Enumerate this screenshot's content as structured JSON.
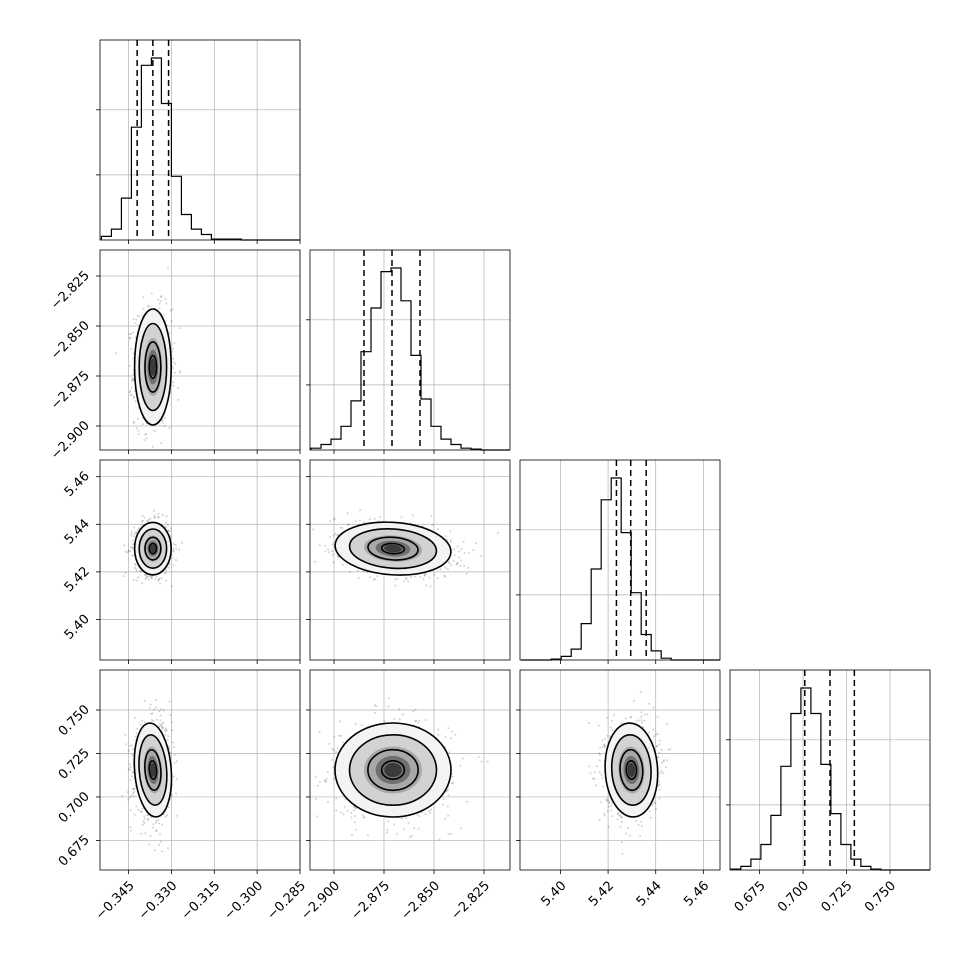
{
  "chart_data": {
    "type": "corner",
    "grid": true,
    "parameters": [
      {
        "index": 0,
        "range": [
          -0.355,
          -0.285
        ],
        "ticks": [
          -0.345,
          -0.33,
          -0.315,
          -0.3,
          -0.285
        ],
        "tick_labels": [
          "−0.345",
          "−0.330",
          "−0.315",
          "−0.300",
          "−0.285"
        ],
        "quantiles": [
          -0.342,
          -0.3365,
          -0.331
        ],
        "hist_start": -0.3545,
        "hist_step": 0.0035,
        "hist_counts": [
          0.02,
          0.06,
          0.23,
          0.62,
          0.96,
          1.0,
          0.75,
          0.35,
          0.14,
          0.06,
          0.03,
          0.005,
          0.005,
          0.005,
          0,
          0,
          0,
          0,
          0,
          0
        ]
      },
      {
        "index": 1,
        "range": [
          -2.912,
          -2.812
        ],
        "ticks": [
          -2.9,
          -2.875,
          -2.85,
          -2.825
        ],
        "tick_labels": [
          "−2.900",
          "−2.875",
          "−2.850",
          "−2.825"
        ],
        "quantiles": [
          -2.885,
          -2.871,
          -2.857
        ],
        "hist_start": -2.9115,
        "hist_step": 0.005,
        "hist_counts": [
          0.01,
          0.03,
          0.06,
          0.13,
          0.27,
          0.54,
          0.78,
          0.98,
          1.0,
          0.82,
          0.52,
          0.28,
          0.13,
          0.06,
          0.03,
          0.01,
          0.005,
          0,
          0,
          0
        ]
      },
      {
        "index": 2,
        "range": [
          5.383,
          5.467
        ],
        "ticks": [
          5.4,
          5.42,
          5.44,
          5.46
        ],
        "tick_labels": [
          "5.40",
          "5.42",
          "5.44",
          "5.46"
        ],
        "quantiles": [
          5.4235,
          5.4295,
          5.436
        ],
        "hist_start": 5.3835,
        "hist_step": 0.0042,
        "hist_counts": [
          0,
          0,
          0,
          0.005,
          0.02,
          0.06,
          0.2,
          0.5,
          0.88,
          1.0,
          0.7,
          0.37,
          0.14,
          0.05,
          0.01,
          0,
          0,
          0,
          0,
          0
        ]
      },
      {
        "index": 3,
        "range": [
          0.658,
          0.773
        ],
        "ticks": [
          0.675,
          0.7,
          0.725,
          0.75
        ],
        "tick_labels": [
          "0.675",
          "0.700",
          "0.725",
          "0.750"
        ],
        "quantiles": [
          0.701,
          0.7155,
          0.7295
        ],
        "hist_start": 0.6585,
        "hist_step": 0.00575,
        "hist_counts": [
          0.005,
          0.02,
          0.06,
          0.14,
          0.3,
          0.57,
          0.86,
          1.0,
          0.86,
          0.58,
          0.31,
          0.14,
          0.06,
          0.02,
          0.005,
          0,
          0,
          0,
          0,
          0
        ]
      }
    ],
    "pairs": [
      {
        "x": 0,
        "y": 1,
        "mean": [
          -0.3365,
          -2.8705
        ],
        "sd": [
          0.0032,
          0.0145
        ],
        "corr": 0.0
      },
      {
        "x": 0,
        "y": 2,
        "mean": [
          -0.3365,
          5.4298
        ],
        "sd": [
          0.0032,
          0.0055
        ],
        "corr": 0.0
      },
      {
        "x": 1,
        "y": 2,
        "mean": [
          -2.8705,
          5.4298
        ],
        "sd": [
          0.0145,
          0.0055
        ],
        "corr": -0.25
      },
      {
        "x": 0,
        "y": 3,
        "mean": [
          -0.3365,
          0.7155
        ],
        "sd": [
          0.0032,
          0.0135
        ],
        "corr": 0.05
      },
      {
        "x": 1,
        "y": 3,
        "mean": [
          -2.8705,
          0.7155
        ],
        "sd": [
          0.0145,
          0.0135
        ],
        "corr": 0.0
      },
      {
        "x": 2,
        "y": 3,
        "mean": [
          5.4298,
          0.7155
        ],
        "sd": [
          0.0055,
          0.0135
        ],
        "corr": 0.05
      }
    ]
  }
}
